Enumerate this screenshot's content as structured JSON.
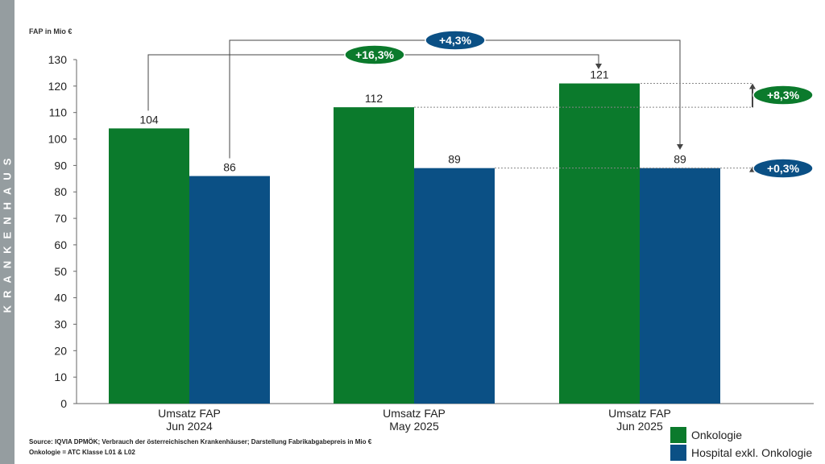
{
  "sidebar_label": "KRANKENHAUS",
  "chart_data": {
    "type": "bar",
    "ylabel": "FAP in Mio €",
    "ylim": [
      0,
      130
    ],
    "yticks": [
      0,
      10,
      20,
      30,
      40,
      50,
      60,
      70,
      80,
      90,
      100,
      110,
      120,
      130
    ],
    "categories": [
      [
        "Umsatz FAP",
        "Jun 2024"
      ],
      [
        "Umsatz FAP",
        "May 2025"
      ],
      [
        "Umsatz FAP",
        "Jun 2025"
      ]
    ],
    "series": [
      {
        "name": "Onkologie",
        "color": "#0b7a2c",
        "values": [
          104,
          112,
          121
        ]
      },
      {
        "name": "Hospital exkl. Onkologie",
        "color": "#0b5085",
        "values": [
          86,
          89,
          89
        ]
      }
    ],
    "annotations": {
      "onko_yoy": "+16,3%",
      "hosp_yoy": "+4,3%",
      "onko_mom": "+8,3%",
      "hosp_mom": "+0,3%"
    },
    "legend_position": "bottom-right"
  },
  "footer": {
    "source": "Source: IQVIA DPMÖK; Verbrauch der österreichischen Krankenhäuser; Darstellung Fabrikabgabepreis in Mio €",
    "note": "Onkologie = ATC Klasse L01 & L02"
  }
}
